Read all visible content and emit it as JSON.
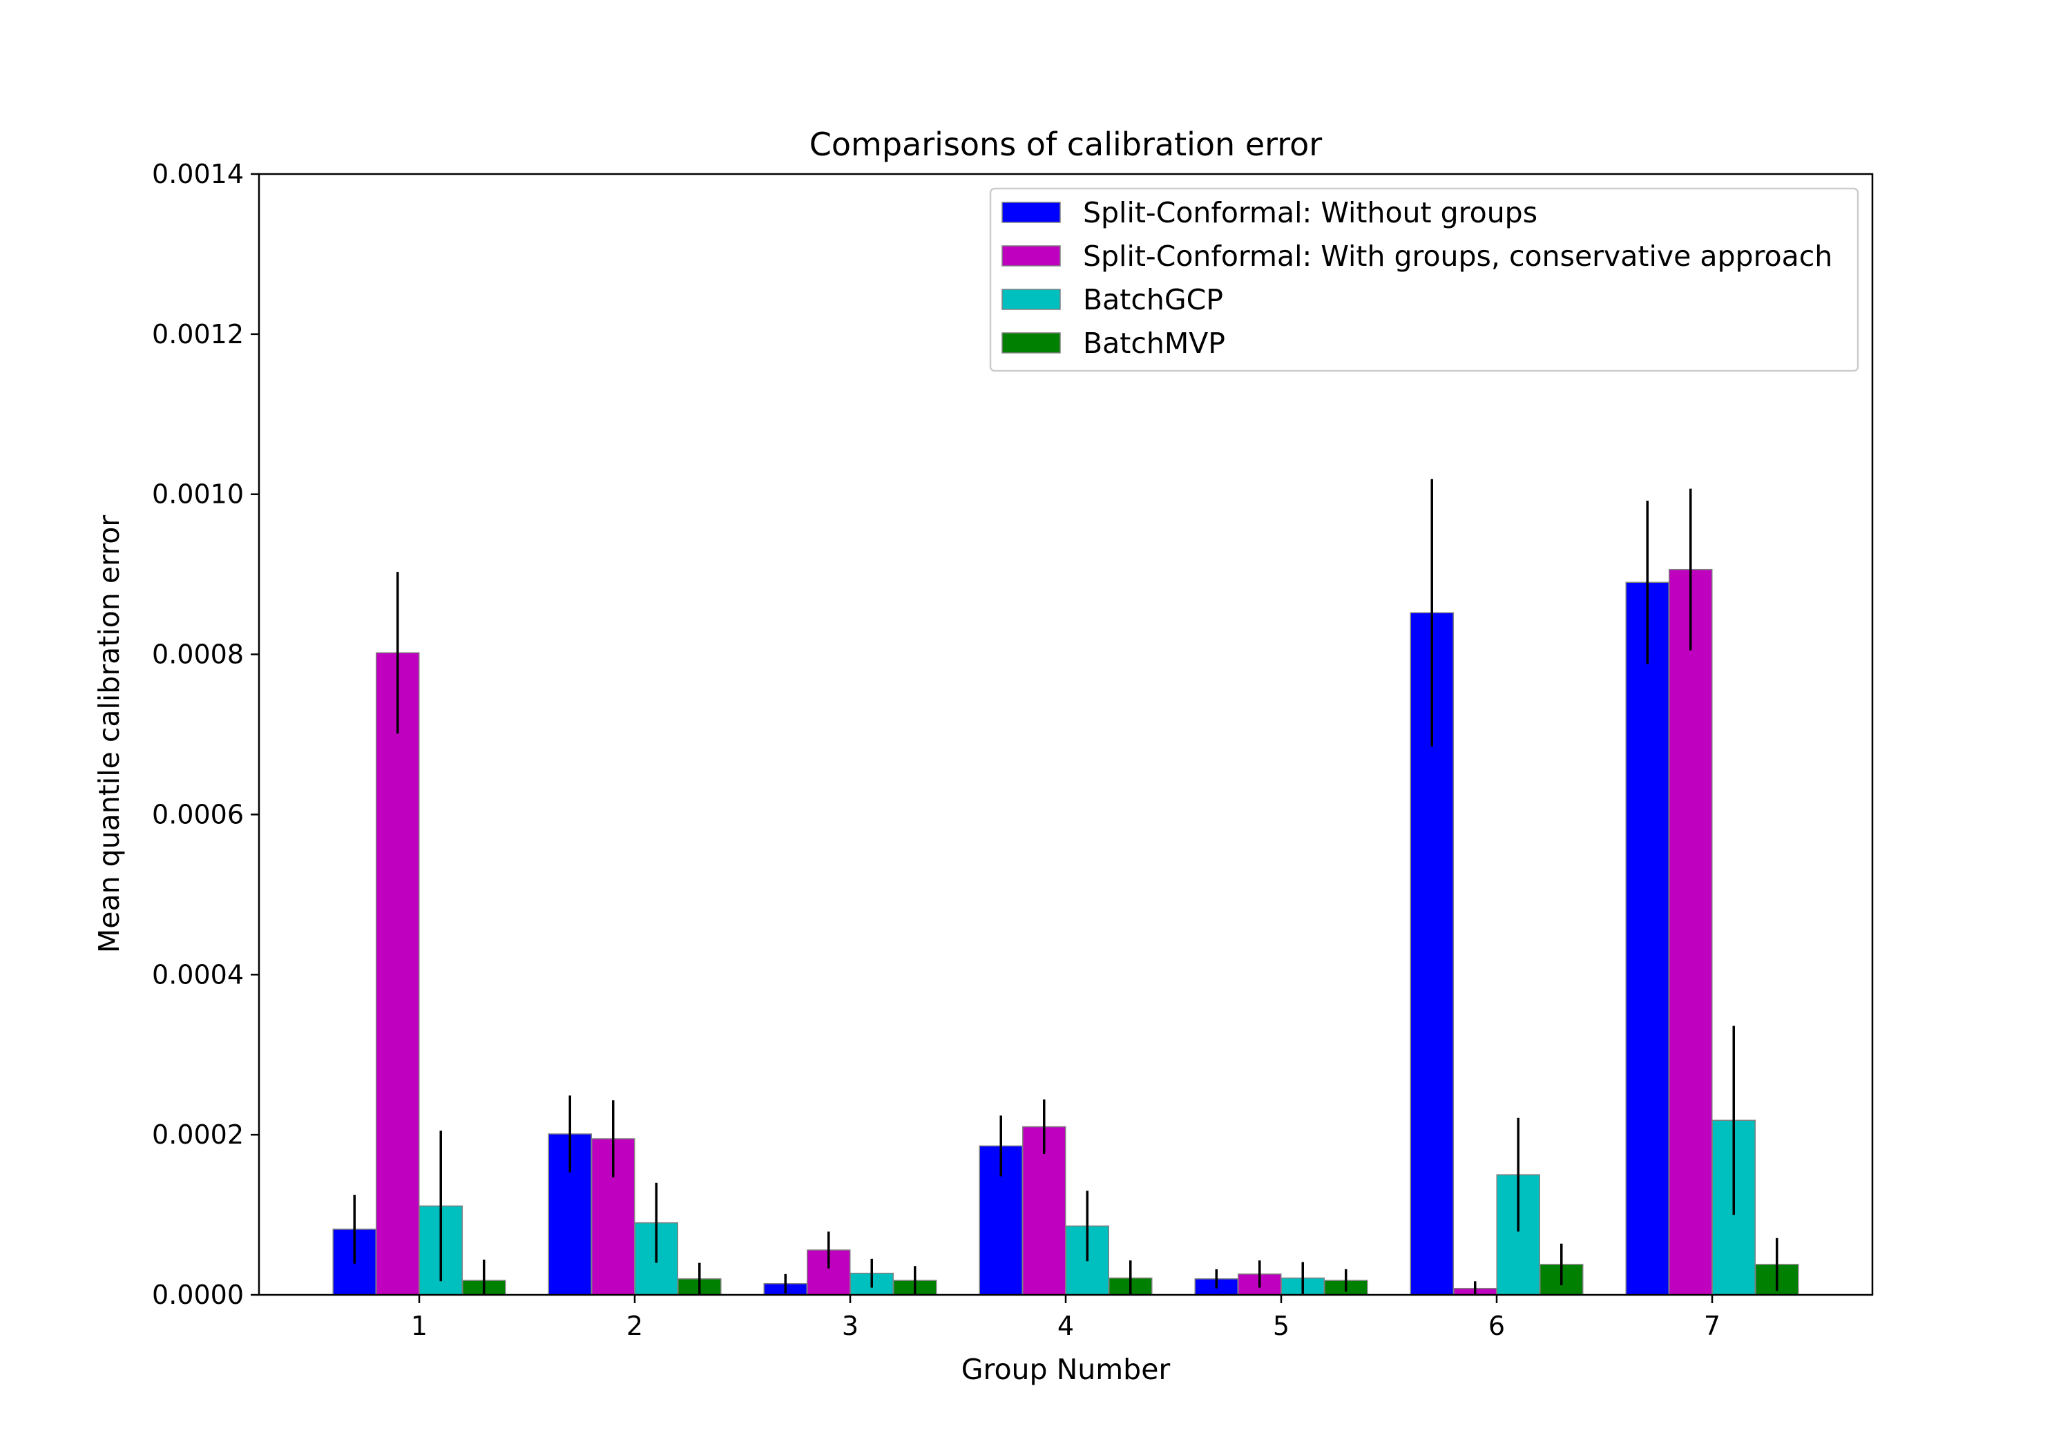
{
  "chart_data": {
    "type": "bar",
    "title": "Comparisons of calibration error",
    "xlabel": "Group Number",
    "ylabel": "Mean quantile calibration error",
    "ylim": [
      0,
      0.0014
    ],
    "yticks": [
      0.0,
      0.0002,
      0.0004,
      0.0006,
      0.0008,
      0.001,
      0.0012,
      0.0014
    ],
    "ytick_labels": [
      "0.0000",
      "0.0002",
      "0.0004",
      "0.0006",
      "0.0008",
      "0.0010",
      "0.0012",
      "0.0014"
    ],
    "categories": [
      "1",
      "2",
      "3",
      "4",
      "5",
      "6",
      "7"
    ],
    "grid": false,
    "legend_position": "top-right",
    "series": [
      {
        "name": "Split-Conformal: Without groups",
        "color": "#0000ff",
        "values": [
          8.2e-05,
          0.000201,
          1.4e-05,
          0.000186,
          2e-05,
          0.000852,
          0.00089
        ],
        "errors": [
          4.3e-05,
          4.8e-05,
          1.2e-05,
          3.8e-05,
          1.2e-05,
          0.000167,
          0.000102
        ]
      },
      {
        "name": "Split-Conformal: With groups, conservative approach",
        "color": "#bf00bf",
        "values": [
          0.000802,
          0.000195,
          5.6e-05,
          0.00021,
          2.6e-05,
          8e-06,
          0.000906
        ],
        "errors": [
          0.000101,
          4.8e-05,
          2.3e-05,
          3.4e-05,
          1.7e-05,
          9e-06,
          0.000101
        ]
      },
      {
        "name": "BatchGCP",
        "color": "#00bfbf",
        "values": [
          0.000111,
          9e-05,
          2.7e-05,
          8.6e-05,
          2.1e-05,
          0.00015,
          0.000218
        ],
        "errors": [
          9.4e-05,
          5e-05,
          1.8e-05,
          4.4e-05,
          2e-05,
          7.1e-05,
          0.000118
        ]
      },
      {
        "name": "BatchMVP",
        "color": "#008000",
        "values": [
          1.8e-05,
          2e-05,
          1.8e-05,
          2.1e-05,
          1.8e-05,
          3.8e-05,
          3.8e-05
        ],
        "errors": [
          2.6e-05,
          2e-05,
          1.8e-05,
          2.2e-05,
          1.4e-05,
          2.6e-05,
          3.3e-05
        ]
      }
    ]
  }
}
